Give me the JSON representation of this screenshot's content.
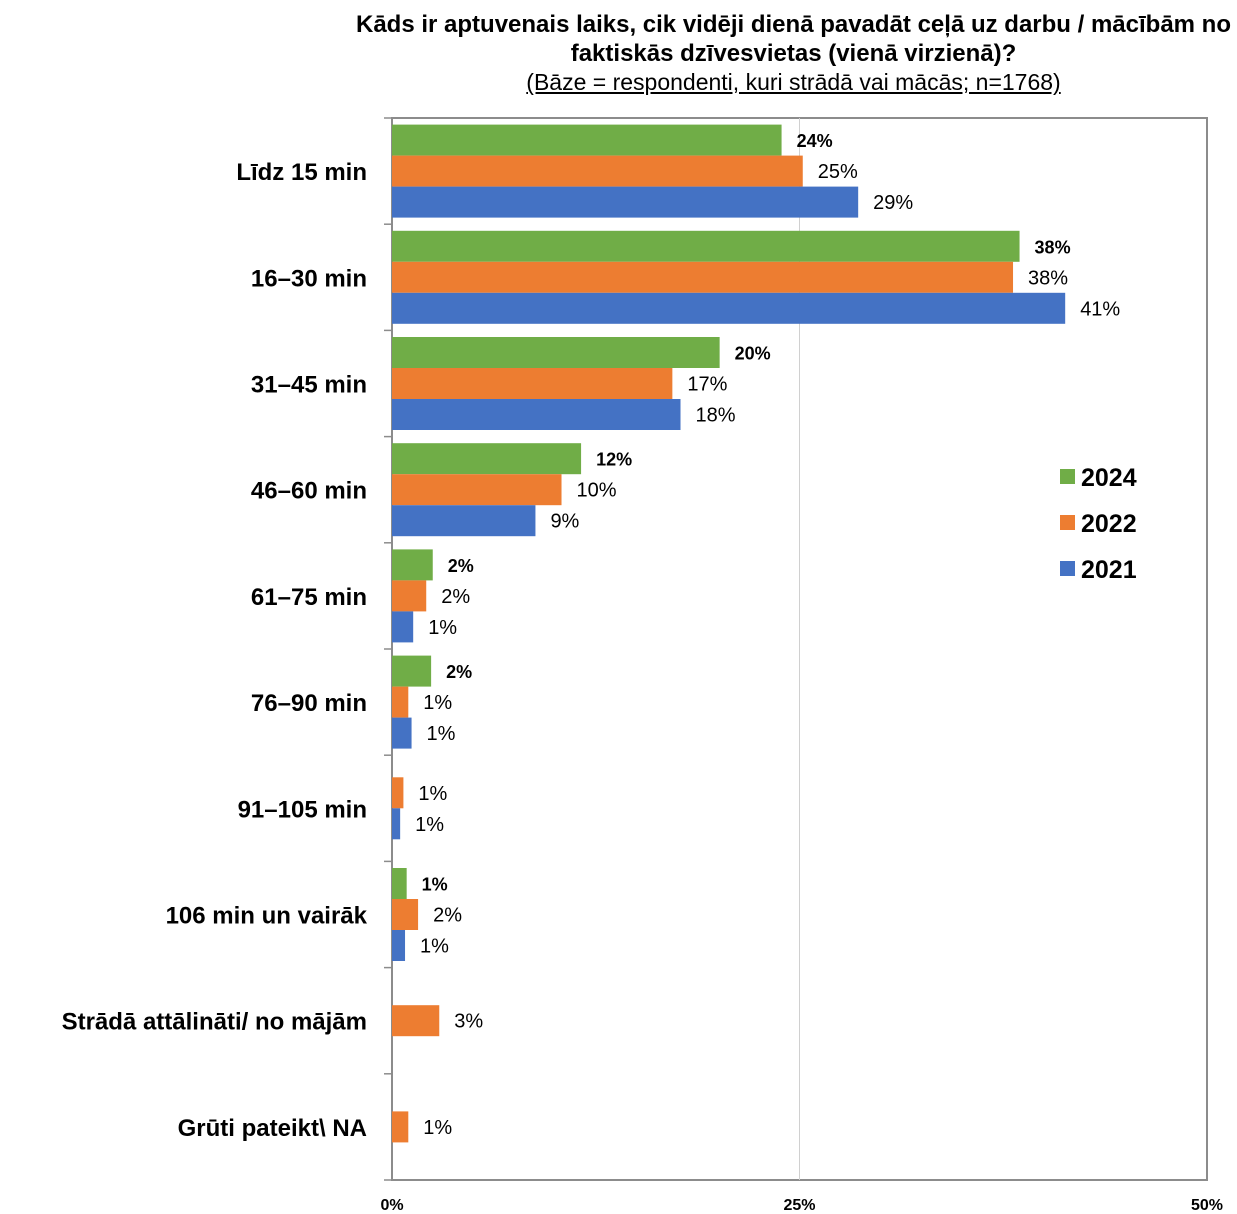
{
  "chart_data": {
    "type": "bar",
    "orientation": "horizontal",
    "title": "Kāds ir aptuvenais laiks, cik vidēji dienā pavadāt ceļā uz darbu / mācībām no faktiskās dzīvesvietas (vienā virzienā)?",
    "subtitle": "(Bāze = respondenti, kuri strādā vai mācās; n=1768)",
    "categories": [
      "Līdz 15 min",
      "16–30 min",
      "31–45 min",
      "46–60 min",
      "61–75 min",
      "76–90 min",
      "91–105 min",
      "106 min un vairāk",
      "Strādā attālināti/ no mājām",
      "Grūti pateikt\\ NA"
    ],
    "series": [
      {
        "name": "2024",
        "color": "#70ad47",
        "label_bold": true,
        "values": [
          24,
          38,
          20,
          12,
          2,
          2,
          null,
          1,
          null,
          null
        ],
        "plot_values": [
          23.9,
          38.5,
          20.1,
          11.6,
          2.5,
          2.4,
          null,
          0.9,
          null,
          null
        ]
      },
      {
        "name": "2022",
        "color": "#ed7d31",
        "label_bold": false,
        "values": [
          25,
          38,
          17,
          10,
          2,
          1,
          1,
          2,
          3,
          1
        ],
        "plot_values": [
          25.2,
          38.1,
          17.2,
          10.4,
          2.1,
          1.0,
          0.7,
          1.6,
          2.9,
          1.0
        ]
      },
      {
        "name": "2021",
        "color": "#4472c4",
        "label_bold": false,
        "values": [
          29,
          41,
          18,
          9,
          1,
          1,
          1,
          1,
          null,
          null
        ],
        "plot_values": [
          28.6,
          41.3,
          17.7,
          8.8,
          1.3,
          1.2,
          0.5,
          0.8,
          null,
          null
        ]
      }
    ],
    "value_suffix": "%",
    "xlim": [
      0,
      50
    ],
    "xticks": [
      0,
      25,
      50
    ],
    "xtick_labels": [
      "0%",
      "25%",
      "50%"
    ],
    "gridlines": [
      25
    ],
    "legend": {
      "placement": "right",
      "order": [
        "2024",
        "2022",
        "2021"
      ]
    }
  }
}
